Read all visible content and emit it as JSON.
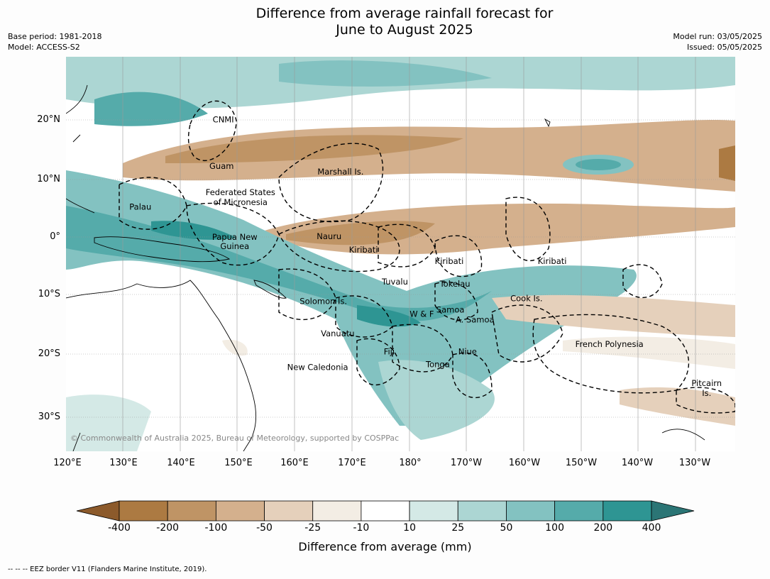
{
  "title": {
    "line1": "Difference from average rainfall forecast for",
    "line2": "June to August 2025"
  },
  "meta_left": {
    "base_period": "Base period: 1981-2018",
    "model": "Model: ACCESS-S2"
  },
  "meta_right": {
    "model_run": "Model run: 03/05/2025",
    "issued": "Issued: 05/05/2025"
  },
  "map": {
    "lon_ticks": [
      "120°E",
      "130°E",
      "140°E",
      "150°E",
      "160°E",
      "170°E",
      "180°",
      "170°W",
      "160°W",
      "150°W",
      "140°W",
      "130°W"
    ],
    "lat_ticks": [
      "20°N",
      "10°N",
      "0°",
      "10°S",
      "20°S",
      "30°S"
    ],
    "regions": [
      {
        "name": "CNMI",
        "lon": 147.5,
        "lat": 20.3
      },
      {
        "name": "Guam",
        "lon": 147.2,
        "lat": 12.3
      },
      {
        "name": "Marshall Is.",
        "lon": 168.0,
        "lat": 11.3
      },
      {
        "name": "Federated States",
        "lon": 150.5,
        "lat": 7.7
      },
      {
        "name": "of Micronesia",
        "lon": 150.5,
        "lat": 6.0
      },
      {
        "name": "Palau",
        "lon": 133.0,
        "lat": 5.2
      },
      {
        "name": "Papua New",
        "lon": 149.5,
        "lat": 0.0
      },
      {
        "name": "Guinea",
        "lon": 149.5,
        "lat": -1.6
      },
      {
        "name": "Nauru",
        "lon": 166.0,
        "lat": 0.1
      },
      {
        "name": "Kiribati",
        "lon": 172.0,
        "lat": -2.2
      },
      {
        "name": "Kiribati",
        "lon": -173.0,
        "lat": -4.2
      },
      {
        "name": "Kiribati",
        "lon": -155.0,
        "lat": -4.2
      },
      {
        "name": "Tuvalu",
        "lon": 177.5,
        "lat": -7.7
      },
      {
        "name": "Tokelau",
        "lon": -172.0,
        "lat": -8.1
      },
      {
        "name": "Cook Is.",
        "lon": -159.5,
        "lat": -10.6
      },
      {
        "name": "Solomon Is.",
        "lon": 165.0,
        "lat": -11.1
      },
      {
        "name": "Samoa",
        "lon": -172.8,
        "lat": -12.6
      },
      {
        "name": "W & F",
        "lon": -177.8,
        "lat": -13.3
      },
      {
        "name": "A. Samoa",
        "lon": -168.5,
        "lat": -14.3
      },
      {
        "name": "Vanuatu",
        "lon": 167.5,
        "lat": -16.7
      },
      {
        "name": "French Polynesia",
        "lon": -145.0,
        "lat": -18.5
      },
      {
        "name": "Fiji",
        "lon": 176.5,
        "lat": -19.8
      },
      {
        "name": "Niue",
        "lon": -169.8,
        "lat": -19.8
      },
      {
        "name": "Tonga",
        "lon": -175.0,
        "lat": -22.0
      },
      {
        "name": "New Caledonia",
        "lon": 164.0,
        "lat": -22.5
      },
      {
        "name": "Pitcairn",
        "lon": -128.0,
        "lat": -25.3
      },
      {
        "name": "Is.",
        "lon": -128.0,
        "lat": -27.0
      }
    ],
    "copyright": "© Commonwealth of Australia 2025, Bureau of Meteorology, supported by COSPPac"
  },
  "colorbar": {
    "labels": [
      "-400",
      "-200",
      "-100",
      "-50",
      "-25",
      "-10",
      "10",
      "25",
      "50",
      "100",
      "200",
      "400"
    ],
    "colors": [
      "#8c5a2b",
      "#ac7a42",
      "#bf9465",
      "#d4b08d",
      "#e5d0bb",
      "#f3ede4",
      "#ffffff",
      "#d4e9e6",
      "#acd6d3",
      "#83c2c1",
      "#55abaa",
      "#2e9593",
      "#2b7575"
    ],
    "title": "Difference from average (mm)"
  },
  "footer": "--  --  -- EEZ border V11 (Flanders Marine Institute, 2019)."
}
